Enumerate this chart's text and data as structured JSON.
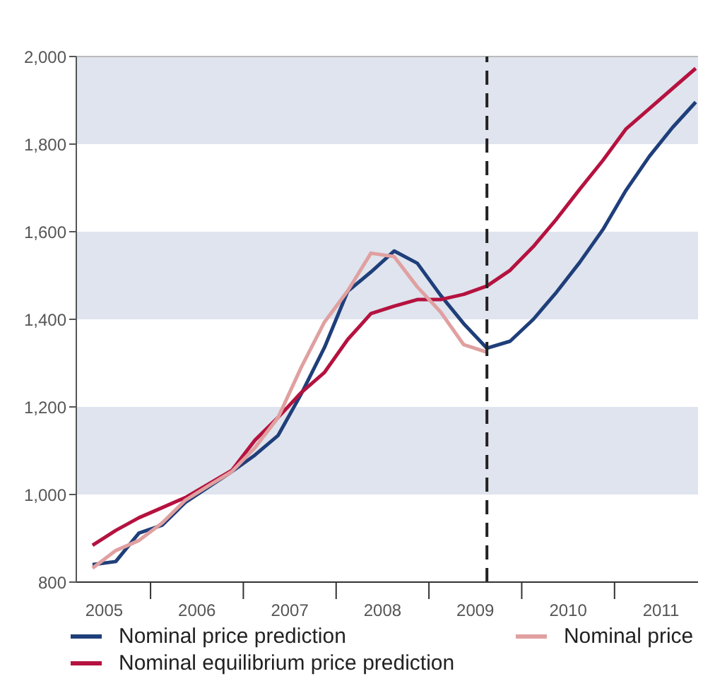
{
  "chart_data": {
    "type": "line",
    "x": [
      2004.875,
      2005.125,
      2005.375,
      2005.625,
      2005.875,
      2006.125,
      2006.375,
      2006.625,
      2006.875,
      2007.125,
      2007.375,
      2007.625,
      2007.875,
      2008.125,
      2008.375,
      2008.625,
      2008.875,
      2009.125,
      2009.375,
      2009.625,
      2009.875,
      2010.125,
      2010.375,
      2010.625,
      2010.875,
      2011.125,
      2011.375
    ],
    "series": [
      {
        "name": "Nominal price prediction",
        "color": "#1f3f7a",
        "values": [
          840,
          847,
          912,
          930,
          982,
          1017,
          1052,
          1090,
          1135,
          1230,
          1336,
          1464,
          1508,
          1556,
          1528,
          1455,
          1390,
          1334,
          1350,
          1400,
          1462,
          1530,
          1605,
          1695,
          1772,
          1838,
          1896
        ]
      },
      {
        "name": "Nominal equilibrium price prediction",
        "color": "#b5123f",
        "values": [
          884,
          918,
          947,
          970,
          993,
          1024,
          1055,
          1124,
          1176,
          1233,
          1279,
          1354,
          1413,
          1430,
          1445,
          1445,
          1457,
          1476,
          1512,
          1566,
          1629,
          1697,
          1763,
          1835,
          1881,
          1927,
          1973
        ]
      },
      {
        "name": "Nominal price",
        "color": "#e0a0a0",
        "values": [
          832,
          872,
          895,
          935,
          987,
          1020,
          1052,
          1107,
          1176,
          1291,
          1394,
          1465,
          1551,
          1543,
          1474,
          1417,
          1342,
          1325,
          null,
          null,
          null,
          null,
          null,
          null,
          null,
          null,
          null
        ]
      }
    ],
    "xlim": [
      2004.7,
      2011.4
    ],
    "xticks": [
      2005,
      {
        "value": 2005.5,
        "label": null
      },
      2006,
      {
        "value": 2006.5,
        "label": null
      },
      2007,
      {
        "value": 2007.5,
        "label": null
      },
      2008,
      {
        "value": 2008.5,
        "label": null
      },
      2009,
      {
        "value": 2009.5,
        "label": null
      },
      2010,
      {
        "value": 2010.5,
        "label": null
      },
      2011
    ],
    "ylim": [
      800,
      2000
    ],
    "yticks": [
      {
        "value": 800,
        "label": "800"
      },
      {
        "value": 1000,
        "label": "1,000"
      },
      {
        "value": 1200,
        "label": "1,200"
      },
      {
        "value": 1400,
        "label": "1,400"
      },
      {
        "value": 1600,
        "label": "1,600"
      },
      {
        "value": 1800,
        "label": "1,800"
      },
      {
        "value": 2000,
        "label": "2,000"
      }
    ],
    "bands": [
      {
        "axis": "y",
        "from": 1000,
        "to": 1200,
        "color": "#dfe4ee"
      },
      {
        "axis": "y",
        "from": 1400,
        "to": 1600,
        "color": "#dfe4ee"
      },
      {
        "axis": "y",
        "from": 1800,
        "to": 2000,
        "color": "#dfe4ee"
      }
    ],
    "ref_lines": [
      {
        "axis": "x",
        "value": 2009.125,
        "color": "#222222",
        "line_style": "dashed"
      }
    ],
    "grid": false,
    "legend": "bottom",
    "marker": "none",
    "line_style": "solid"
  }
}
